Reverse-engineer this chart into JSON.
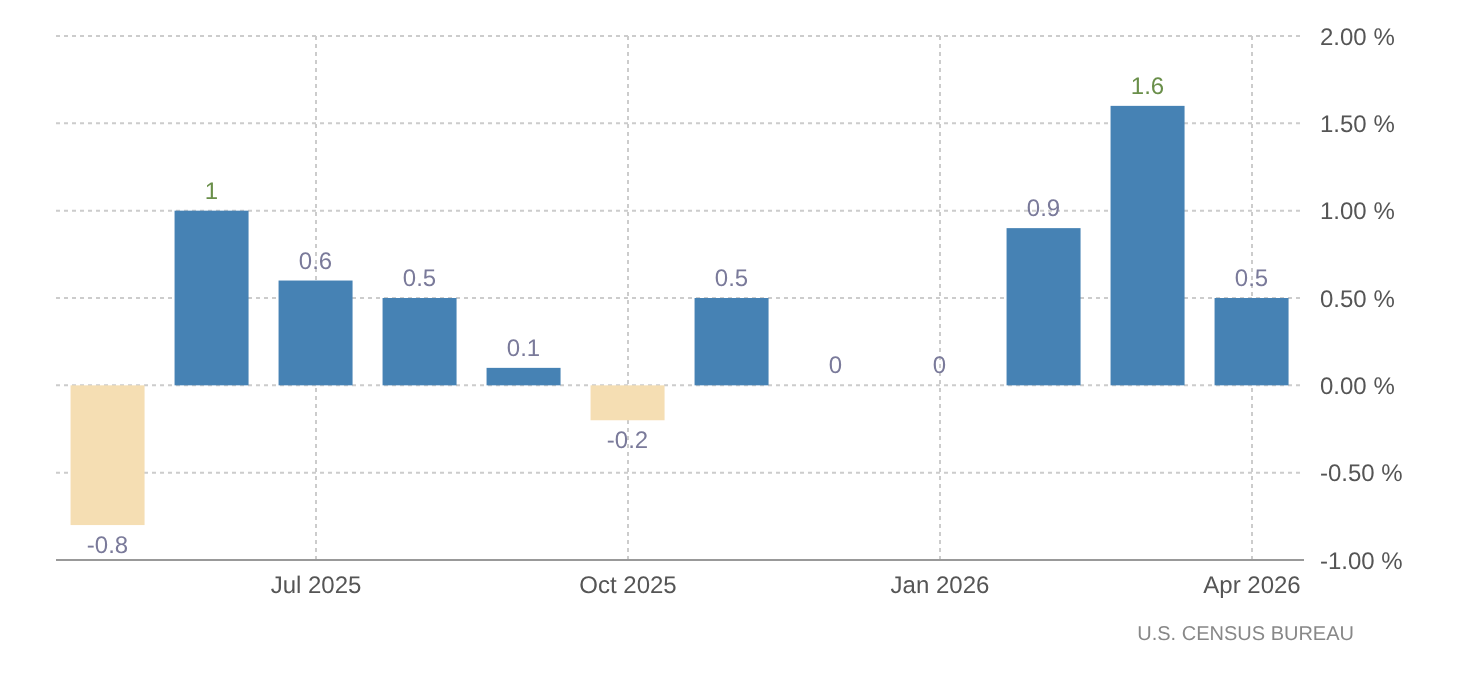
{
  "chart_data": {
    "type": "bar",
    "categories": [
      null,
      null,
      "Jul 2025",
      null,
      null,
      "Oct 2025",
      null,
      null,
      "Jan 2026",
      null,
      null,
      "Apr 2026"
    ],
    "values": [
      -0.8,
      1,
      0.6,
      0.5,
      0.1,
      -0.2,
      0.5,
      0,
      0,
      0.9,
      1.6,
      0.5
    ],
    "colors": [
      "#f5deb3",
      "#4682b4",
      "#4682b4",
      "#4682b4",
      "#4682b4",
      "#f5deb3",
      "#4682b4",
      "#4682b4",
      "#4682b4",
      "#4682b4",
      "#4682b4",
      "#4682b4"
    ],
    "ylim": [
      -1,
      2
    ],
    "yticks": [
      {
        "value": -1,
        "label": "-1.00 %"
      },
      {
        "value": -0.5,
        "label": "-0.50 %"
      },
      {
        "value": 0,
        "label": "0.00 %"
      },
      {
        "value": 0.5,
        "label": "0.50 %"
      },
      {
        "value": 1,
        "label": "1.00 %"
      },
      {
        "value": 1.5,
        "label": "1.50 %"
      },
      {
        "value": 2,
        "label": "2.00 %"
      }
    ],
    "grid": true,
    "data_labels": true,
    "annotations": [
      "U.S. CENSUS BUREAU"
    ]
  }
}
